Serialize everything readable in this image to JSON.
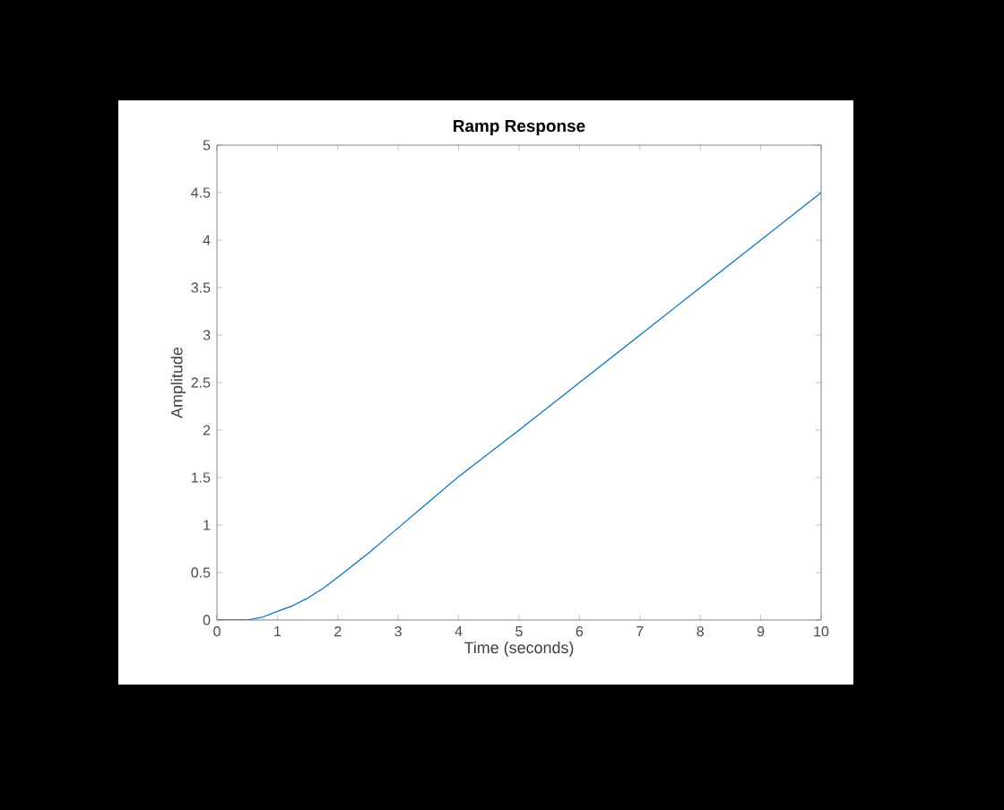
{
  "chart_data": {
    "type": "line",
    "title": "Ramp Response",
    "xlabel": "Time (seconds)",
    "ylabel": "Amplitude",
    "x": [
      0,
      0.5,
      0.75,
      1,
      1.25,
      1.5,
      1.75,
      2,
      2.5,
      3,
      3.5,
      4,
      5,
      6,
      7,
      8,
      9,
      10
    ],
    "values": [
      0,
      0,
      0.03,
      0.09,
      0.15,
      0.23,
      0.33,
      0.45,
      0.7,
      0.97,
      1.24,
      1.51,
      2.0,
      2.5,
      3.0,
      3.5,
      4.0,
      4.5
    ],
    "color": "#0072bd",
    "xlim": [
      0,
      10
    ],
    "ylim": [
      0,
      5
    ],
    "xticks": [
      0,
      1,
      2,
      3,
      4,
      5,
      6,
      7,
      8,
      9,
      10
    ],
    "yticks": [
      0,
      0.5,
      1,
      1.5,
      2,
      2.5,
      3,
      3.5,
      4,
      4.5,
      5
    ]
  }
}
